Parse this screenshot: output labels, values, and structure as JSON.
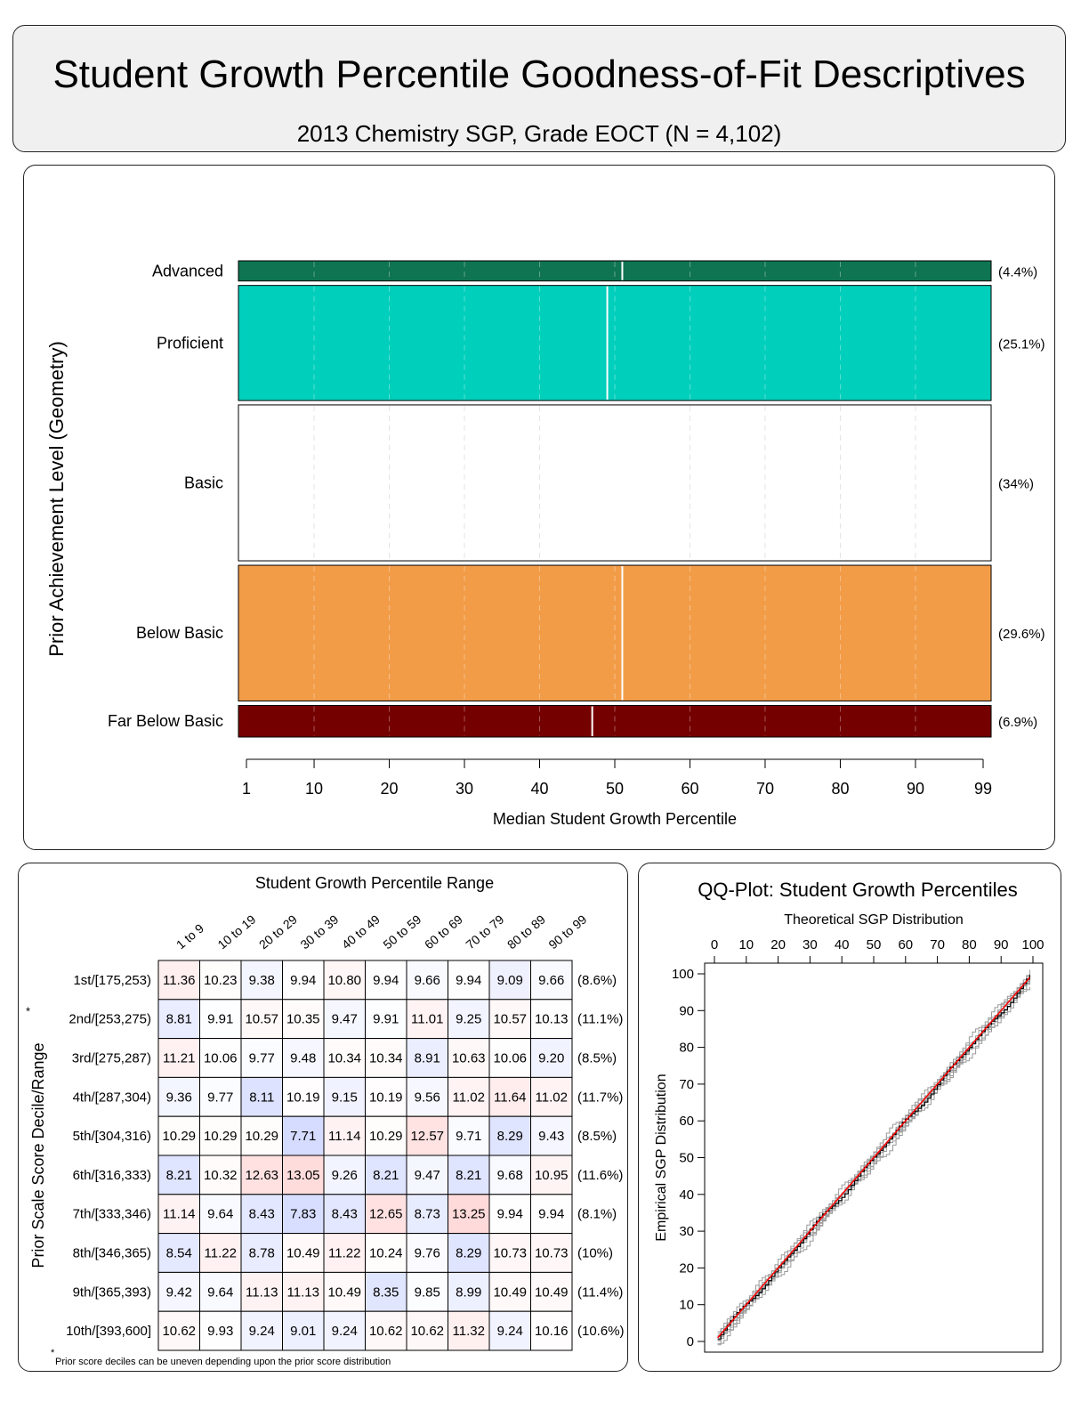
{
  "title": "Student Growth Percentile Goodness-of-Fit Descriptives",
  "subtitle": "2013 Chemistry SGP, Grade EOCT (N = 4,102)",
  "chart_data": [
    {
      "type": "bar",
      "ylabel": "Prior Achievement Level (Geometry)",
      "xlabel": "Median Student Growth Percentile",
      "xlim": [
        1,
        99
      ],
      "xticks": [
        "1",
        "10",
        "20",
        "30",
        "40",
        "50",
        "60",
        "70",
        "80",
        "90",
        "99"
      ],
      "categories": [
        "Advanced",
        "Proficient",
        "Basic",
        "Below Basic",
        "Far Below Basic"
      ],
      "percents": [
        4.4,
        25.1,
        34,
        29.6,
        6.9
      ],
      "percent_labels": [
        "(4.4%)",
        "(25.1%)",
        "(34%)",
        "(29.6%)",
        "(6.9%)"
      ],
      "median_sgp": [
        51,
        49,
        50,
        51,
        47
      ],
      "colors": [
        "#0e7452",
        "#00cfbc",
        "#ffffff",
        "#f29c48",
        "#750000"
      ]
    },
    {
      "type": "heatmap",
      "title": "Student Growth Percentile Range",
      "ylabel": "Prior Scale Score Decile/Range",
      "columns": [
        "1 to 9",
        "10 to 19",
        "20 to 29",
        "30 to 39",
        "40 to 49",
        "50 to 59",
        "60 to 69",
        "70 to 79",
        "80 to 89",
        "90 to 99"
      ],
      "rows": [
        "1st/[175,253)",
        "2nd/[253,275)",
        "3rd/[275,287)",
        "4th/[287,304)",
        "5th/[304,316)",
        "6th/[316,333)",
        "7th/[333,346)",
        "8th/[346,365)",
        "9th/[365,393)",
        "10th/[393,600]"
      ],
      "row_percents": [
        "(8.6%)",
        "(11.1%)",
        "(8.5%)",
        "(11.7%)",
        "(8.5%)",
        "(11.6%)",
        "(8.1%)",
        "(10%)",
        "(11.4%)",
        "(10.6%)"
      ],
      "values": [
        [
          "11.36",
          "10.23",
          "9.38",
          "9.94",
          "10.80",
          "9.94",
          "9.66",
          "9.94",
          "9.09",
          "9.66"
        ],
        [
          "8.81",
          "9.91",
          "10.57",
          "10.35",
          "9.47",
          "9.91",
          "11.01",
          "9.25",
          "10.57",
          "10.13"
        ],
        [
          "11.21",
          "10.06",
          "9.77",
          "9.48",
          "10.34",
          "10.34",
          "8.91",
          "10.63",
          "10.06",
          "9.20"
        ],
        [
          "9.36",
          "9.77",
          "8.11",
          "10.19",
          "9.15",
          "10.19",
          "9.56",
          "11.02",
          "11.64",
          "11.02"
        ],
        [
          "10.29",
          "10.29",
          "10.29",
          "7.71",
          "11.14",
          "10.29",
          "12.57",
          "9.71",
          "8.29",
          "9.43"
        ],
        [
          "8.21",
          "10.32",
          "12.63",
          "13.05",
          "9.26",
          "8.21",
          "9.47",
          "8.21",
          "9.68",
          "10.95"
        ],
        [
          "11.14",
          "9.64",
          "8.43",
          "7.83",
          "8.43",
          "12.65",
          "8.73",
          "13.25",
          "9.94",
          "9.94"
        ],
        [
          "8.54",
          "11.22",
          "8.78",
          "10.49",
          "11.22",
          "10.24",
          "9.76",
          "8.29",
          "10.73",
          "10.73"
        ],
        [
          "9.42",
          "9.64",
          "11.13",
          "11.13",
          "10.49",
          "8.35",
          "9.85",
          "8.99",
          "10.49",
          "10.49"
        ],
        [
          "10.62",
          "9.93",
          "9.24",
          "9.01",
          "9.24",
          "10.62",
          "10.62",
          "11.32",
          "9.24",
          "10.16"
        ]
      ],
      "star": "*",
      "footnote_star": "*",
      "footnote": "Prior score deciles can be uneven depending upon the prior score distribution"
    },
    {
      "type": "line",
      "title": "QQ-Plot: Student Growth Percentiles",
      "xlabel": "Theoretical SGP Distribution",
      "ylabel": "Empirical SGP Distribution",
      "xlim": [
        0,
        100
      ],
      "ylim": [
        0,
        100
      ],
      "xticks": [
        "0",
        "10",
        "20",
        "30",
        "40",
        "50",
        "60",
        "70",
        "80",
        "90",
        "100"
      ],
      "yticks": [
        "0",
        "10",
        "20",
        "30",
        "40",
        "50",
        "60",
        "70",
        "80",
        "90",
        "100"
      ],
      "x": [
        1,
        99
      ],
      "y": [
        1,
        99
      ],
      "series_colors": {
        "reference": "#ff0000",
        "empirical": "#000000",
        "replicates": "#9a9a9a"
      }
    }
  ]
}
